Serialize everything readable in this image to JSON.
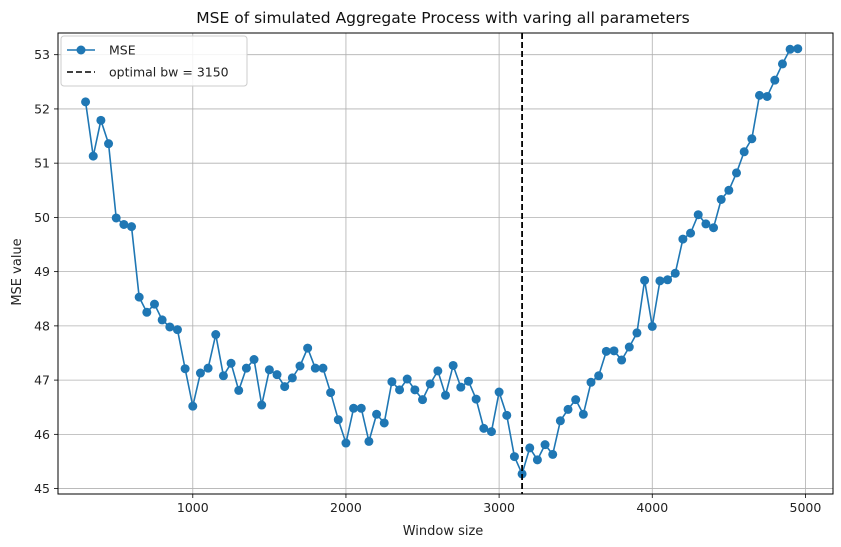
{
  "chart_data": {
    "type": "line",
    "title": "MSE of simulated Aggregate Process with varing all parameters",
    "xlabel": "Window size",
    "ylabel": "MSE value",
    "xlim": [
      120,
      5180
    ],
    "ylim": [
      44.9,
      53.4
    ],
    "xticks": [
      1000,
      2000,
      3000,
      4000,
      5000
    ],
    "yticks": [
      45,
      46,
      47,
      48,
      49,
      50,
      51,
      52,
      53
    ],
    "grid": true,
    "legend_position": "top-left",
    "series": [
      {
        "name": "MSE",
        "color": "#1f77b4",
        "marker": "circle",
        "x": [
          300,
          350,
          400,
          450,
          500,
          550,
          600,
          650,
          700,
          750,
          800,
          850,
          900,
          950,
          1000,
          1050,
          1100,
          1150,
          1200,
          1250,
          1300,
          1350,
          1400,
          1450,
          1500,
          1550,
          1600,
          1650,
          1700,
          1750,
          1800,
          1850,
          1900,
          1950,
          2000,
          2050,
          2100,
          2150,
          2200,
          2250,
          2300,
          2350,
          2400,
          2450,
          2500,
          2550,
          2600,
          2650,
          2700,
          2750,
          2800,
          2850,
          2900,
          2950,
          3000,
          3050,
          3100,
          3150,
          3200,
          3250,
          3300,
          3350,
          3400,
          3450,
          3500,
          3550,
          3600,
          3650,
          3700,
          3750,
          3800,
          3850,
          3900,
          3950,
          4000,
          4050,
          4100,
          4150,
          4200,
          4250,
          4300,
          4350,
          4400,
          4450,
          4500,
          4550,
          4600,
          4650,
          4700,
          4750,
          4800,
          4850,
          4900,
          4950
        ],
        "y": [
          52.13,
          51.13,
          51.79,
          51.36,
          49.99,
          49.87,
          49.83,
          48.53,
          48.25,
          48.4,
          48.11,
          47.98,
          47.93,
          47.21,
          46.52,
          47.13,
          47.22,
          47.84,
          47.08,
          47.31,
          46.81,
          47.22,
          47.38,
          46.54,
          47.19,
          47.1,
          46.88,
          47.04,
          47.26,
          47.59,
          47.22,
          47.22,
          46.77,
          46.27,
          45.84,
          46.48,
          46.48,
          45.87,
          46.37,
          46.21,
          46.97,
          46.82,
          47.02,
          46.82,
          46.64,
          46.93,
          47.17,
          46.72,
          47.27,
          46.87,
          46.98,
          46.65,
          46.11,
          46.05,
          46.78,
          46.35,
          45.59,
          45.27,
          45.75,
          45.53,
          45.81,
          45.63,
          46.25,
          46.46,
          46.64,
          46.37,
          46.96,
          47.08,
          47.53,
          47.54,
          47.37,
          47.61,
          47.87,
          48.84,
          47.99,
          48.83,
          48.85,
          48.97,
          49.6,
          49.71,
          50.05,
          49.88,
          49.81,
          50.33,
          50.5,
          50.82,
          51.21,
          51.45,
          52.25,
          52.23,
          52.53,
          52.83,
          53.1,
          53.11
        ]
      },
      {
        "name": "optimal bw = 3150",
        "color": "#000000",
        "style": "dashed",
        "vline_x": 3150
      }
    ]
  }
}
